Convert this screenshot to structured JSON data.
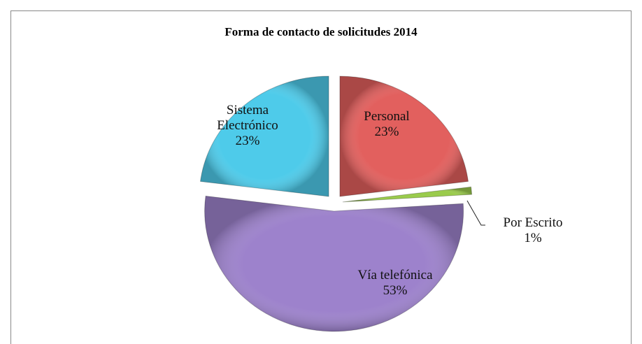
{
  "chart_data": {
    "type": "pie",
    "title": "Forma de contacto de solicitudes 2014",
    "categories": [
      "Personal",
      "Por Escrito",
      "Vía telefónica",
      "Sistema Electrónico"
    ],
    "values": [
      23,
      1,
      53,
      23
    ],
    "value_labels": [
      "23%",
      "1%",
      "53%",
      "23%"
    ],
    "colors": [
      "#e2605e",
      "#9acb4c",
      "#9d82cc",
      "#4ecbea"
    ]
  }
}
